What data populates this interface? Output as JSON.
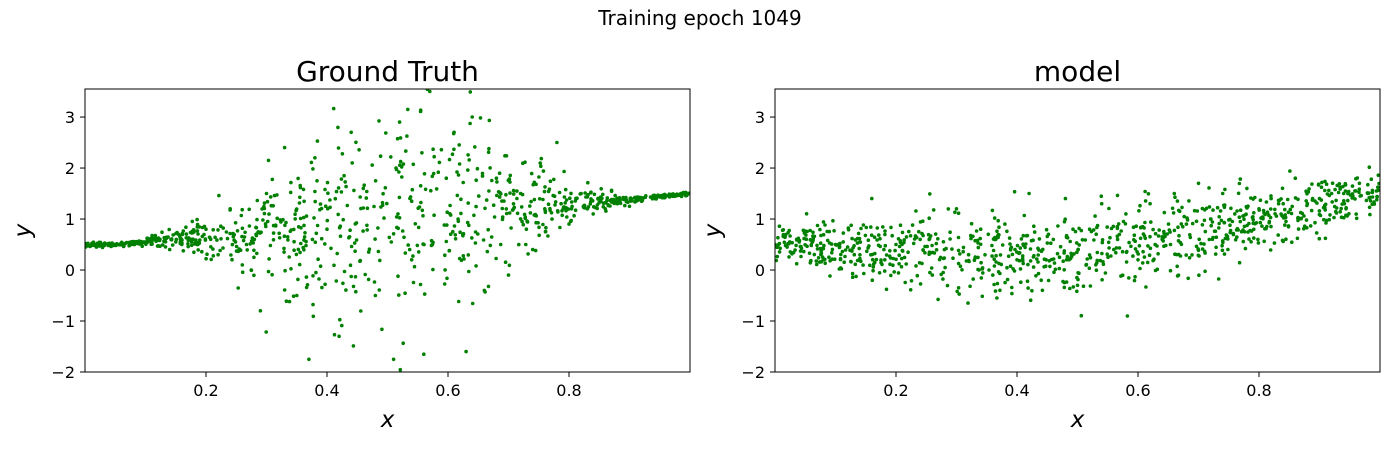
{
  "figure": {
    "suptitle": "Training epoch 1049"
  },
  "chart_data": [
    {
      "type": "scatter",
      "title": "Ground Truth",
      "xlabel": "x",
      "ylabel": "y",
      "xlim": [
        0.0,
        1.0
      ],
      "ylim": [
        -2.0,
        3.55
      ],
      "xticks": [
        0.2,
        0.4,
        0.6,
        0.8
      ],
      "yticks": [
        -2,
        -1,
        0,
        1,
        2,
        3
      ],
      "xtick_labels": [
        "0.2",
        "0.4",
        "0.6",
        "0.8"
      ],
      "ytick_labels": [
        "−2",
        "−1",
        "0",
        "1",
        "2",
        "3"
      ],
      "grid": false,
      "marker_color": "#008000",
      "n_points": 1000,
      "points": [
        [
          0.0,
          0.52
        ],
        [
          0.02,
          0.51
        ],
        [
          0.04,
          0.5
        ],
        [
          0.06,
          0.53
        ],
        [
          0.08,
          0.54
        ],
        [
          0.1,
          0.55
        ],
        [
          0.12,
          0.47
        ],
        [
          0.14,
          0.4
        ],
        [
          0.16,
          0.5
        ],
        [
          0.18,
          0.35
        ],
        [
          0.2,
          0.8
        ],
        [
          0.22,
          0.3
        ],
        [
          0.24,
          1.2
        ],
        [
          0.26,
          0.1
        ],
        [
          0.28,
          0.6
        ],
        [
          0.3,
          1.5
        ],
        [
          0.29,
          -0.8
        ],
        [
          0.33,
          2.4
        ],
        [
          0.35,
          -0.5
        ],
        [
          0.37,
          -1.75
        ],
        [
          0.38,
          2.2
        ],
        [
          0.4,
          0.8
        ],
        [
          0.42,
          -1.3
        ],
        [
          0.44,
          2.7
        ],
        [
          0.46,
          1.6
        ],
        [
          0.48,
          -0.5
        ],
        [
          0.51,
          -1.75
        ],
        [
          0.52,
          2.9
        ],
        [
          0.54,
          0.2
        ],
        [
          0.56,
          -1.65
        ],
        [
          0.57,
          3.5
        ],
        [
          0.59,
          -2.05
        ],
        [
          0.61,
          2.7
        ],
        [
          0.63,
          -1.6
        ],
        [
          0.64,
          3.0
        ],
        [
          0.66,
          -0.4
        ],
        [
          0.68,
          1.8
        ],
        [
          0.7,
          -0.1
        ],
        [
          0.72,
          1.5
        ],
        [
          0.74,
          0.4
        ],
        [
          0.76,
          1.2
        ],
        [
          0.78,
          2.5
        ],
        [
          0.8,
          0.9
        ],
        [
          0.82,
          1.5
        ],
        [
          0.84,
          1.1
        ],
        [
          0.86,
          1.2
        ],
        [
          0.88,
          1.3
        ],
        [
          0.9,
          1.25
        ],
        [
          0.92,
          1.35
        ],
        [
          0.94,
          1.4
        ],
        [
          0.96,
          1.45
        ],
        [
          0.98,
          1.48
        ]
      ]
    },
    {
      "type": "scatter",
      "title": "model",
      "xlabel": "x",
      "ylabel": "y",
      "xlim": [
        0.0,
        1.0
      ],
      "ylim": [
        -2.0,
        3.55
      ],
      "xticks": [
        0.2,
        0.4,
        0.6,
        0.8
      ],
      "yticks": [
        -2,
        -1,
        0,
        1,
        2,
        3
      ],
      "xtick_labels": [
        "0.2",
        "0.4",
        "0.6",
        "0.8"
      ],
      "ytick_labels": [
        "−2",
        "−1",
        "0",
        "1",
        "2",
        "3"
      ],
      "grid": false,
      "marker_color": "#008000",
      "n_points": 1000,
      "points": [
        [
          0.0,
          0.5
        ],
        [
          0.02,
          0.45
        ],
        [
          0.04,
          0.55
        ],
        [
          0.06,
          0.48
        ],
        [
          0.08,
          0.42
        ],
        [
          0.1,
          0.5
        ],
        [
          0.12,
          0.45
        ],
        [
          0.14,
          0.55
        ],
        [
          0.16,
          1.4
        ],
        [
          0.18,
          0.4
        ],
        [
          0.2,
          0.5
        ],
        [
          0.22,
          0.35
        ],
        [
          0.24,
          0.6
        ],
        [
          0.26,
          -0.1
        ],
        [
          0.28,
          0.4
        ],
        [
          0.3,
          1.2
        ],
        [
          0.32,
          0.3
        ],
        [
          0.34,
          0.8
        ],
        [
          0.36,
          -0.1
        ],
        [
          0.38,
          0.9
        ],
        [
          0.4,
          0.2
        ],
        [
          0.42,
          1.5
        ],
        [
          0.44,
          -0.2
        ],
        [
          0.46,
          0.6
        ],
        [
          0.48,
          1.4
        ],
        [
          0.5,
          -0.3
        ],
        [
          0.52,
          0.8
        ],
        [
          0.54,
          1.3
        ],
        [
          0.56,
          0.4
        ],
        [
          0.58,
          1.1
        ],
        [
          0.6,
          0.2
        ],
        [
          0.62,
          1.3
        ],
        [
          0.64,
          0.6
        ],
        [
          0.66,
          1.5
        ],
        [
          0.68,
          0.9
        ],
        [
          0.7,
          1.7
        ],
        [
          0.72,
          1.0
        ],
        [
          0.74,
          1.5
        ],
        [
          0.76,
          1.1
        ],
        [
          0.78,
          1.6
        ],
        [
          0.8,
          1.2
        ],
        [
          0.82,
          1.4
        ],
        [
          0.84,
          1.3
        ],
        [
          0.86,
          1.8
        ],
        [
          0.88,
          1.3
        ],
        [
          0.9,
          1.4
        ],
        [
          0.92,
          1.5
        ],
        [
          0.94,
          1.5
        ],
        [
          0.96,
          1.55
        ],
        [
          0.98,
          1.5
        ]
      ]
    }
  ]
}
